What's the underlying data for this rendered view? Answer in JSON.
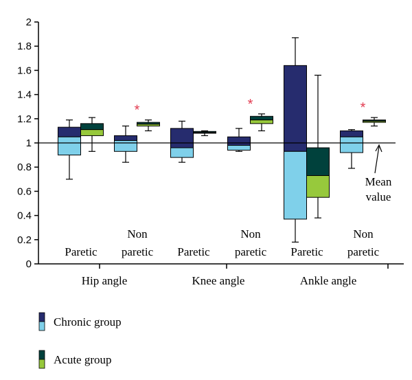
{
  "chart_data": {
    "type": "box",
    "ylim": [
      0,
      2
    ],
    "yticks": [
      "0",
      "0.2",
      "0.4",
      "0.6",
      "0.8",
      "1",
      "1.2",
      "1.4",
      "1.6",
      "1.8",
      "2"
    ],
    "reference_line": 1,
    "colors": {
      "chronic_upper": "#262c6e",
      "chronic_lower": "#7fd0ea",
      "acute_upper": "#00413c",
      "acute_lower": "#97c93c",
      "star": "#e23b50"
    },
    "groups": [
      {
        "label": "Hip angle",
        "sublabels": [
          [
            "Paretic"
          ],
          [
            "Non",
            "paretic"
          ]
        ],
        "significance": [
          false,
          true
        ],
        "pairs": [
          {
            "chronic": {
              "whisker_low": 0.7,
              "q1": 0.9,
              "median": 1.05,
              "q3": 1.13,
              "whisker_high": 1.19
            },
            "acute": {
              "whisker_low": 0.93,
              "q1": 1.06,
              "median": 1.11,
              "q3": 1.16,
              "whisker_high": 1.21
            }
          },
          {
            "chronic": {
              "whisker_low": 0.84,
              "q1": 0.93,
              "median": 1.02,
              "q3": 1.06,
              "whisker_high": 1.14
            },
            "acute": {
              "whisker_low": 1.1,
              "q1": 1.14,
              "median": 1.155,
              "q3": 1.17,
              "whisker_high": 1.19
            }
          }
        ]
      },
      {
        "label": "Knee angle",
        "sublabels": [
          [
            "Paretic"
          ],
          [
            "Non",
            "paretic"
          ]
        ],
        "significance": [
          false,
          true
        ],
        "pairs": [
          {
            "chronic": {
              "whisker_low": 0.84,
              "q1": 0.88,
              "median": 0.96,
              "q3": 1.12,
              "whisker_high": 1.18
            },
            "acute": {
              "whisker_low": 1.06,
              "q1": 1.08,
              "median": 1.085,
              "q3": 1.095,
              "whisker_high": 1.1
            }
          },
          {
            "chronic": {
              "whisker_low": 0.93,
              "q1": 0.94,
              "median": 0.98,
              "q3": 1.05,
              "whisker_high": 1.12
            },
            "acute": {
              "whisker_low": 1.1,
              "q1": 1.16,
              "median": 1.19,
              "q3": 1.22,
              "whisker_high": 1.24
            }
          }
        ]
      },
      {
        "label": "Ankle angle",
        "sublabels": [
          [
            "Paretic"
          ],
          [
            "Non",
            "paretic"
          ]
        ],
        "significance": [
          false,
          true
        ],
        "pairs": [
          {
            "chronic": {
              "whisker_low": 0.18,
              "q1": 0.37,
              "median": 0.93,
              "q3": 1.64,
              "whisker_high": 1.87
            },
            "acute": {
              "whisker_low": 0.38,
              "q1": 0.55,
              "median": 0.73,
              "q3": 0.96,
              "whisker_high": 1.56
            }
          },
          {
            "chronic": {
              "whisker_low": 0.79,
              "q1": 0.92,
              "median": 1.05,
              "q3": 1.1,
              "whisker_high": 1.11
            },
            "acute": {
              "whisker_low": 1.14,
              "q1": 1.17,
              "median": 1.18,
              "q3": 1.19,
              "whisker_high": 1.21
            }
          }
        ]
      }
    ],
    "star_symbol": "*",
    "annotation": {
      "lines": [
        "Mean",
        "value"
      ],
      "points_to": 1
    },
    "legend": {
      "position": "bottom-left",
      "entries": [
        {
          "name": "Chronic group",
          "key": "chronic"
        },
        {
          "name": "Acute group",
          "key": "acute"
        }
      ]
    }
  }
}
